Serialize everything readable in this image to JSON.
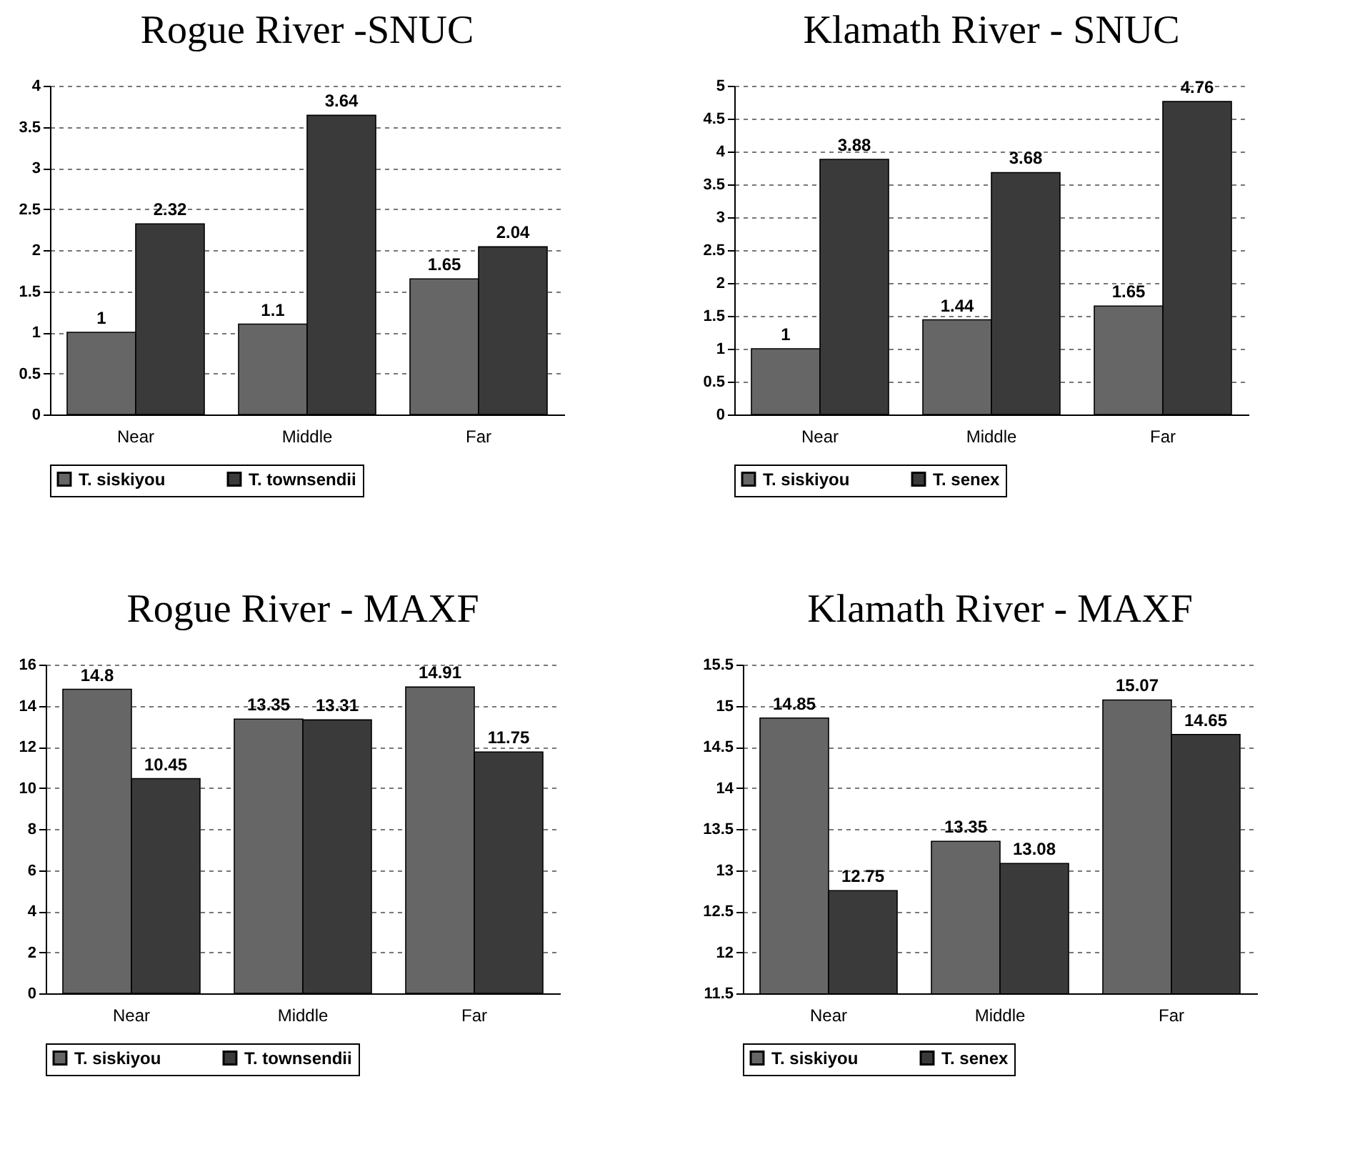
{
  "chart_data": [
    {
      "type": "bar",
      "title": "Rogue River -SNUC",
      "categories": [
        "Near",
        "Middle",
        "Far"
      ],
      "series": [
        {
          "name": "T. siskiyou",
          "color": "#666666",
          "values": [
            1,
            1.1,
            1.65
          ]
        },
        {
          "name": "T. townsendii",
          "color": "#3a3a3a",
          "values": [
            2.32,
            3.64,
            2.04
          ]
        }
      ],
      "ylim": [
        0,
        4
      ],
      "yticks": [
        0,
        0.5,
        1,
        1.5,
        2,
        2.5,
        3,
        3.5,
        4
      ],
      "grid": "y",
      "legend": "bottom",
      "data_labels": true
    },
    {
      "type": "bar",
      "title": "Klamath River - SNUC",
      "categories": [
        "Near",
        "Middle",
        "Far"
      ],
      "series": [
        {
          "name": "T. siskiyou",
          "color": "#666666",
          "values": [
            1,
            1.44,
            1.65
          ]
        },
        {
          "name": "T. senex",
          "color": "#3a3a3a",
          "values": [
            3.88,
            3.68,
            4.76
          ]
        }
      ],
      "ylim": [
        0,
        5
      ],
      "yticks": [
        0,
        0.5,
        1,
        1.5,
        2,
        2.5,
        3,
        3.5,
        4,
        4.5,
        5
      ],
      "grid": "y",
      "legend": "bottom",
      "data_labels": true
    },
    {
      "type": "bar",
      "title": "Rogue River - MAXF",
      "categories": [
        "Near",
        "Middle",
        "Far"
      ],
      "series": [
        {
          "name": "T. siskiyou",
          "color": "#666666",
          "values": [
            14.8,
            13.35,
            14.91
          ]
        },
        {
          "name": "T. townsendii",
          "color": "#3a3a3a",
          "values": [
            10.45,
            13.31,
            11.75
          ]
        }
      ],
      "ylim": [
        0,
        16
      ],
      "yticks": [
        0,
        2,
        4,
        6,
        8,
        10,
        12,
        14,
        16
      ],
      "grid": "y",
      "legend": "bottom",
      "data_labels": true
    },
    {
      "type": "bar",
      "title": "Klamath River - MAXF",
      "categories": [
        "Near",
        "Middle",
        "Far"
      ],
      "series": [
        {
          "name": "T. siskiyou",
          "color": "#666666",
          "values": [
            14.85,
            13.35,
            15.07
          ]
        },
        {
          "name": "T. senex",
          "color": "#3a3a3a",
          "values": [
            12.75,
            13.08,
            14.65
          ]
        }
      ],
      "ylim": [
        11.5,
        15.5
      ],
      "yticks": [
        11.5,
        12,
        12.5,
        13,
        13.5,
        14,
        14.5,
        15,
        15.5
      ],
      "grid": "y",
      "legend": "bottom",
      "data_labels": true
    }
  ]
}
